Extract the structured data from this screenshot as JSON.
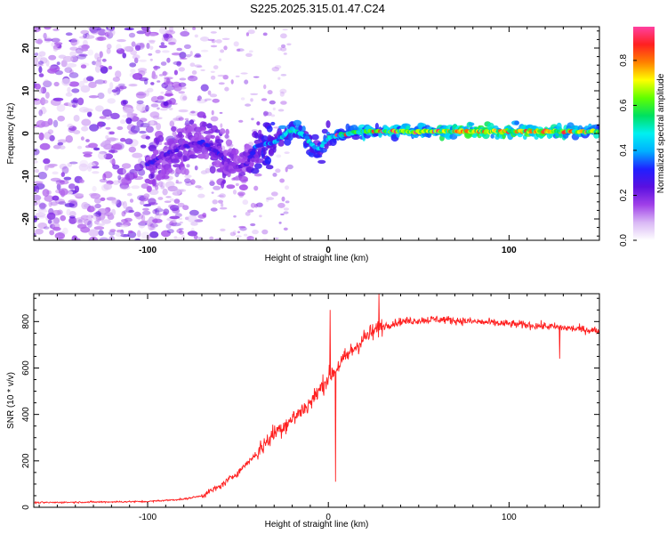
{
  "title": "S225.2025.315.01.47.C24",
  "chart_data": [
    {
      "type": "heatmap",
      "name": "spectrogram",
      "xlabel": "Height of straight line (km)",
      "ylabel": "Frequency (Hz)",
      "xlim": [
        -163,
        150
      ],
      "ylim": [
        -25,
        25
      ],
      "x_ticks": [
        -100,
        0,
        100
      ],
      "y_ticks": [
        -20,
        -10,
        0,
        10,
        20
      ],
      "colorbar": {
        "label": "Normalized spectral amplitude",
        "range": [
          0,
          0.95
        ],
        "ticks": [
          0.0,
          0.2,
          0.4,
          0.6,
          0.8
        ],
        "colormap": [
          "#ffffff",
          "#d9b8f5",
          "#a040e8",
          "#5a10e0",
          "#2020ff",
          "#00b0ff",
          "#00f0f0",
          "#00e060",
          "#60ff00",
          "#ffff00",
          "#ff8000",
          "#ff2020",
          "#ff40a0"
        ]
      },
      "signal_trace": [
        {
          "x": -100,
          "f": -7,
          "amp": 0.25
        },
        {
          "x": -90,
          "f": -5,
          "amp": 0.22
        },
        {
          "x": -80,
          "f": -3,
          "amp": 0.22
        },
        {
          "x": -70,
          "f": -2,
          "amp": 0.25
        },
        {
          "x": -60,
          "f": -5,
          "amp": 0.25
        },
        {
          "x": -50,
          "f": -8,
          "amp": 0.2
        },
        {
          "x": -45,
          "f": -7,
          "amp": 0.22
        },
        {
          "x": -40,
          "f": -3,
          "amp": 0.3
        },
        {
          "x": -30,
          "f": -2,
          "amp": 0.35
        },
        {
          "x": -20,
          "f": 1,
          "amp": 0.45
        },
        {
          "x": -12,
          "f": -1,
          "amp": 0.4
        },
        {
          "x": -6,
          "f": -4,
          "amp": 0.35
        },
        {
          "x": 0,
          "f": -1,
          "amp": 0.4
        },
        {
          "x": 10,
          "f": 0,
          "amp": 0.45
        },
        {
          "x": 20,
          "f": 0.5,
          "amp": 0.5
        },
        {
          "x": 40,
          "f": 0.5,
          "amp": 0.55
        },
        {
          "x": 60,
          "f": 0.5,
          "amp": 0.6
        },
        {
          "x": 80,
          "f": 0.5,
          "amp": 0.65
        },
        {
          "x": 100,
          "f": 0.5,
          "amp": 0.65
        },
        {
          "x": 120,
          "f": 0.5,
          "amp": 0.65
        },
        {
          "x": 140,
          "f": 0.5,
          "amp": 0.6
        },
        {
          "x": 150,
          "f": 0.5,
          "amp": 0.55
        }
      ],
      "noise_floor_region": {
        "x_from": -163,
        "x_to": -70,
        "amp": 0.2
      }
    },
    {
      "type": "line",
      "name": "snr",
      "xlabel": "Height of straight line (km)",
      "ylabel": "SNR (10 * v/v)",
      "xlim": [
        -163,
        150
      ],
      "ylim": [
        0,
        920
      ],
      "x_ticks": [
        -100,
        0,
        100
      ],
      "y_ticks": [
        0,
        200,
        400,
        600,
        800
      ],
      "color": "#ff2020",
      "trend": {
        "x": [
          -163,
          -100,
          -80,
          -70,
          -60,
          -50,
          -40,
          -30,
          -20,
          -10,
          0,
          10,
          20,
          30,
          40,
          60,
          80,
          100,
          120,
          150
        ],
        "y": [
          20,
          25,
          35,
          50,
          90,
          150,
          230,
          320,
          380,
          450,
          560,
          650,
          730,
          780,
          800,
          810,
          800,
          790,
          780,
          760
        ]
      },
      "annotations": [
        {
          "x": 1,
          "y": 850,
          "note": "spike"
        },
        {
          "x": 4,
          "y": 110,
          "note": "dip"
        },
        {
          "x": 28,
          "y": 920,
          "note": "peak"
        },
        {
          "x": 128,
          "y": 640,
          "note": "dip"
        }
      ]
    }
  ]
}
